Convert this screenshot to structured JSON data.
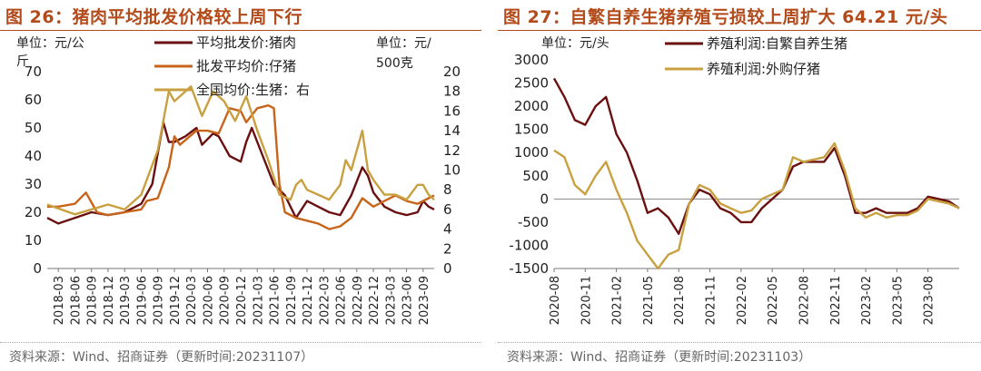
{
  "charts_meta": {
    "left_title": "图 26：猪肉平均批发价格较上周下行",
    "left_source": "资料来源：Wind、招商证券（更新时间:20231107）",
    "right_title": "图 27：自繁自养生猪养殖亏损较上周扩大 64.21 元/头",
    "right_source": "资料来源：Wind、招商证券（更新时间:20231103）"
  },
  "chart_data": [
    {
      "type": "line",
      "left_unit": "单位：元/公斤",
      "right_unit": "单位：元/500克",
      "ylim": [
        0,
        70
      ],
      "y2lim": [
        0,
        20
      ],
      "yticks": [
        0,
        10,
        20,
        30,
        40,
        50,
        60,
        70
      ],
      "y2ticks": [
        0,
        2,
        4,
        6,
        8,
        10,
        12,
        14,
        16,
        18,
        20
      ],
      "x_range": [
        "2018-01",
        "2023-11"
      ],
      "xticks": [
        "2018-03",
        "2018-06",
        "2018-09",
        "2018-12",
        "2019-03",
        "2019-06",
        "2019-09",
        "2019-12",
        "2020-03",
        "2020-06",
        "2020-09",
        "2020-12",
        "2021-03",
        "2021-06",
        "2021-09",
        "2021-12",
        "2022-03",
        "2022-06",
        "2022-09",
        "2022-12",
        "2023-03",
        "2023-06",
        "2023-09"
      ],
      "series": [
        {
          "name": "平均批发价:猪肉",
          "axis": "left",
          "color": "#6b1010",
          "x": [
            "2018-01",
            "2018-03",
            "2018-06",
            "2018-09",
            "2018-12",
            "2019-03",
            "2019-06",
            "2019-08",
            "2019-10",
            "2019-11",
            "2019-12",
            "2020-02",
            "2020-04",
            "2020-05",
            "2020-07",
            "2020-08",
            "2020-10",
            "2020-12",
            "2021-01",
            "2021-02",
            "2021-04",
            "2021-06",
            "2021-08",
            "2021-10",
            "2021-12",
            "2022-02",
            "2022-04",
            "2022-06",
            "2022-08",
            "2022-10",
            "2022-11",
            "2022-12",
            "2023-02",
            "2023-04",
            "2023-06",
            "2023-08",
            "2023-09",
            "2023-10",
            "2023-11"
          ],
          "values": [
            18,
            16,
            18,
            20,
            19,
            20,
            23,
            30,
            52,
            45,
            45,
            47,
            50,
            44,
            48,
            47,
            40,
            38,
            45,
            50,
            40,
            30,
            26,
            18,
            24,
            22,
            20,
            19,
            26,
            36,
            33,
            27,
            22,
            20,
            19,
            20,
            24,
            22,
            21
          ]
        },
        {
          "name": "批发平均价:仔猪",
          "axis": "left",
          "color": "#c8641a",
          "x": [
            "2018-01",
            "2018-03",
            "2018-06",
            "2018-08",
            "2018-10",
            "2018-12",
            "2019-03",
            "2019-06",
            "2019-07",
            "2019-09",
            "2019-11",
            "2019-12",
            "2020-01",
            "2020-04",
            "2020-06",
            "2020-08",
            "2020-10",
            "2020-12",
            "2021-01",
            "2021-03",
            "2021-05",
            "2021-06",
            "2021-07",
            "2021-08",
            "2021-10",
            "2021-12",
            "2022-02",
            "2022-04",
            "2022-06",
            "2022-08",
            "2022-10",
            "2022-12",
            "2023-02",
            "2023-04",
            "2023-06",
            "2023-08",
            "2023-10",
            "2023-11"
          ],
          "values": [
            22,
            22,
            23,
            27,
            20,
            19,
            20,
            21,
            24,
            25,
            36,
            47,
            44,
            49,
            49,
            48,
            57,
            56,
            52,
            57,
            58,
            57,
            30,
            20,
            18,
            17,
            16,
            14,
            15,
            18,
            25,
            22,
            24,
            26,
            24,
            23,
            25,
            26
          ]
        },
        {
          "name": "全国均价:生猪：右",
          "axis": "right",
          "color": "#c9a040",
          "x": [
            "2018-01",
            "2018-06",
            "2018-12",
            "2019-03",
            "2019-06",
            "2019-09",
            "2019-11",
            "2019-12",
            "2020-03",
            "2020-05",
            "2020-07",
            "2020-09",
            "2020-11",
            "2021-01",
            "2021-03",
            "2021-05",
            "2021-07",
            "2021-09",
            "2021-10",
            "2021-11",
            "2021-12",
            "2022-02",
            "2022-04",
            "2022-06",
            "2022-07",
            "2022-08",
            "2022-09",
            "2022-10",
            "2022-11",
            "2022-12",
            "2023-02",
            "2023-04",
            "2023-06",
            "2023-08",
            "2023-09",
            "2023-10",
            "2023-11"
          ],
          "values": [
            6.5,
            5.5,
            6.5,
            6.0,
            7.5,
            12.0,
            18.0,
            17.0,
            18.5,
            15.5,
            18.0,
            17.0,
            15.0,
            17.5,
            14.0,
            11.0,
            7.5,
            7.0,
            8.5,
            9.0,
            8.0,
            7.5,
            7.0,
            8.5,
            11.0,
            10.0,
            12.0,
            14.0,
            10.0,
            9.0,
            7.5,
            7.5,
            7.0,
            8.5,
            8.5,
            7.5,
            7.0
          ]
        }
      ]
    },
    {
      "type": "line",
      "unit": "单位：元/头",
      "ylim": [
        -1500,
        3000
      ],
      "yticks": [
        -1500,
        -1000,
        -500,
        0,
        500,
        1000,
        1500,
        2000,
        2500,
        3000
      ],
      "x_range": [
        "2020-08",
        "2023-11"
      ],
      "xticks": [
        "2020-08",
        "2020-11",
        "2021-02",
        "2021-05",
        "2021-08",
        "2021-11",
        "2022-02",
        "2022-05",
        "2022-08",
        "2022-11",
        "2023-02",
        "2023-05",
        "2023-08"
      ],
      "series": [
        {
          "name": "养殖利润:自繁自养生猪",
          "color": "#6b1010",
          "x": [
            "2020-08",
            "2020-09",
            "2020-10",
            "2020-11",
            "2020-12",
            "2021-01",
            "2021-02",
            "2021-03",
            "2021-04",
            "2021-05",
            "2021-06",
            "2021-07",
            "2021-08",
            "2021-09",
            "2021-10",
            "2021-11",
            "2021-12",
            "2022-01",
            "2022-02",
            "2022-03",
            "2022-04",
            "2022-05",
            "2022-06",
            "2022-07",
            "2022-08",
            "2022-09",
            "2022-10",
            "2022-11",
            "2022-12",
            "2023-01",
            "2023-02",
            "2023-03",
            "2023-04",
            "2023-05",
            "2023-06",
            "2023-07",
            "2023-08",
            "2023-09",
            "2023-10",
            "2023-11"
          ],
          "values": [
            2600,
            2200,
            1700,
            1600,
            2000,
            2200,
            1400,
            1000,
            400,
            -300,
            -200,
            -400,
            -750,
            -100,
            200,
            100,
            -200,
            -300,
            -500,
            -500,
            -200,
            0,
            200,
            700,
            800,
            800,
            800,
            1100,
            500,
            -300,
            -300,
            -200,
            -300,
            -300,
            -300,
            -200,
            50,
            0,
            -50,
            -200
          ]
        },
        {
          "name": "养殖利润:外购仔猪",
          "color": "#c9a040",
          "x": [
            "2020-08",
            "2020-09",
            "2020-10",
            "2020-11",
            "2020-12",
            "2021-01",
            "2021-02",
            "2021-03",
            "2021-04",
            "2021-05",
            "2021-06",
            "2021-07",
            "2021-08",
            "2021-09",
            "2021-10",
            "2021-11",
            "2021-12",
            "2022-01",
            "2022-02",
            "2022-03",
            "2022-04",
            "2022-05",
            "2022-06",
            "2022-07",
            "2022-08",
            "2022-09",
            "2022-10",
            "2022-11",
            "2022-12",
            "2023-01",
            "2023-02",
            "2023-03",
            "2023-04",
            "2023-05",
            "2023-06",
            "2023-07",
            "2023-08",
            "2023-09",
            "2023-10",
            "2023-11"
          ],
          "values": [
            1050,
            900,
            300,
            100,
            500,
            800,
            200,
            -300,
            -900,
            -1200,
            -1500,
            -1200,
            -1100,
            -100,
            300,
            200,
            -100,
            -200,
            -300,
            -250,
            0,
            100,
            200,
            900,
            800,
            850,
            900,
            1200,
            600,
            -200,
            -400,
            -300,
            -400,
            -350,
            -350,
            -250,
            0,
            -50,
            -100,
            -200
          ]
        }
      ]
    }
  ]
}
